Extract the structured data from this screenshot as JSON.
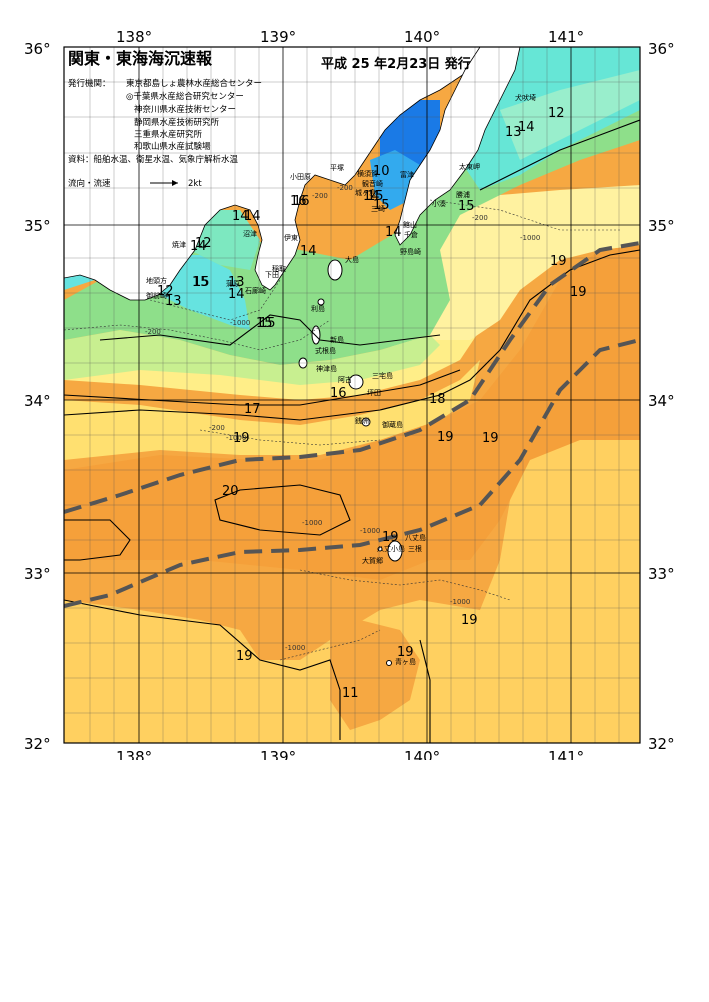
{
  "header": {
    "title": "関東・東海海沉速報",
    "date": "平成 25 年2月23日 発行",
    "publisher_label": "発行機関：",
    "publishers": [
      "東京都島しょ農林水産総合センター",
      "◎千葉県水産総合研究センター",
      "神奈川県水産技術センター",
      "静岡県水産技術研究所",
      "三重県水産研究所",
      "和歌山県水産試験場"
    ],
    "sources": "資料：船舶水温、衛星水温、気象庁解析水温",
    "current_label": "流向・流速",
    "current_scale": "2kt"
  },
  "axes": {
    "lon_labels": [
      "138°",
      "139°",
      "140°",
      "141°"
    ],
    "lat_labels": [
      "36°",
      "35°",
      "34°",
      "33°",
      "32°"
    ]
  },
  "isotherm_labels": [
    "10",
    "12",
    "13",
    "14",
    "14",
    "15",
    "15",
    "16",
    "17",
    "18",
    "19",
    "19",
    "20",
    "12",
    "13",
    "14",
    "14",
    "15",
    "16",
    "19",
    "19",
    "19",
    "19",
    "19",
    "19",
    "19",
    "11",
    "14",
    "14",
    "15",
    "12",
    "13",
    "14",
    "15",
    "15",
    "14",
    "15",
    "16"
  ],
  "depth_labels": [
    "-200",
    "-200",
    "-200",
    "-1000",
    "-1000",
    "-1000",
    "-1000",
    "-1000",
    "-1000",
    "-1000",
    "-200",
    "-200"
  ],
  "places": {
    "inubozaki": "犬吠埼",
    "taitozaki": "太東岬",
    "katsuura": "勝浦",
    "kominato": "小湊",
    "odawara": "小田原",
    "hirasawa": "平塚",
    "yokosuka": "横須賀",
    "futtsu": "富津",
    "kannonzaki": "観音崎",
    "jogashima": "城ヶ島",
    "miura": "三崎",
    "tateyama": "館山",
    "chikura": "千倉",
    "nojimazaki": "野島崎",
    "ito": "伊東",
    "oshima": "大島",
    "shimoda": "下田",
    "irozaki": "石廊崎",
    "shimoda2": "稲取",
    "manazuru": "蒲原",
    "numazu": "沼津",
    "yaizu": "焼津",
    "omaezaki": "御前崎",
    "chikyu": "地頭方",
    "toshima": "利島",
    "niijima": "新島",
    "shikinejima": "式根島",
    "kozushima": "神津島",
    "miyakejima": "三宅島",
    "mikurajima": "御蔵島",
    "hachijojima": "八丈島",
    "kohachijo": "八丈小島",
    "mikura2": "三根",
    "okago": "大賀郷",
    "aogashima": "青ヶ島",
    "tsubota": "坪田",
    "ako": "阿古",
    "zenizu": "銭洲"
  },
  "colors": {
    "land": "#ffffff",
    "cold_cyan": "#66e6e6",
    "cold_blue": "#1a7ae6",
    "green": "#8ee08e",
    "yellow": "#ffff99",
    "light_orange": "#ffd966",
    "orange": "#f5a53b",
    "kuroshio_axis": "#555555"
  }
}
